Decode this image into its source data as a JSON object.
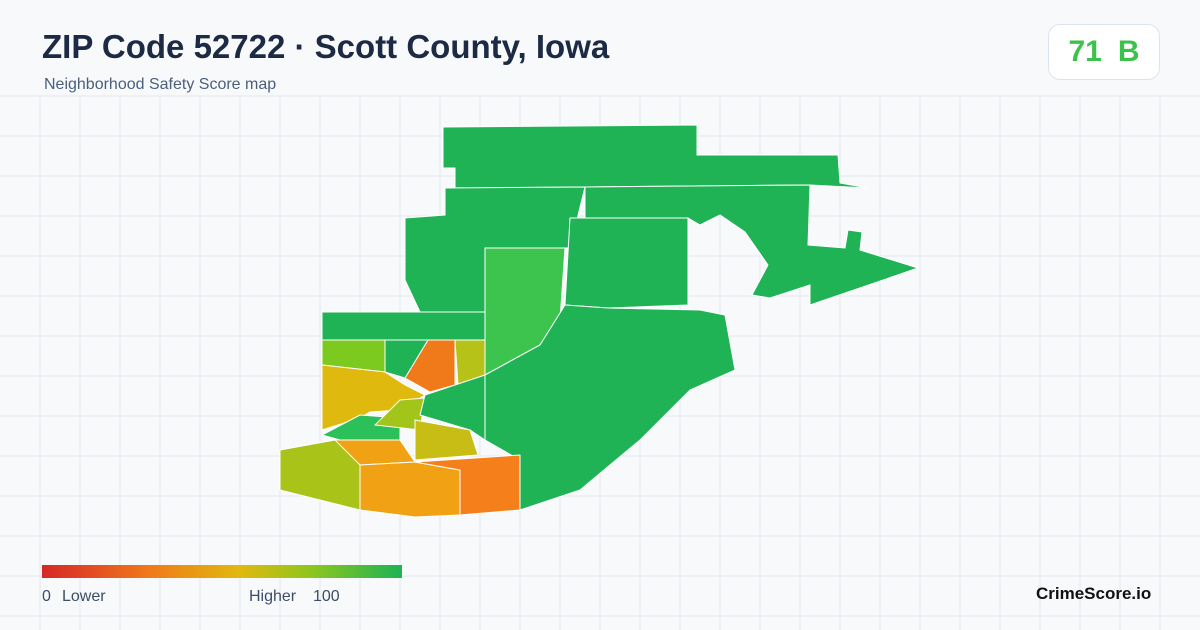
{
  "header": {
    "title": "ZIP Code 52722 · Scott County, Iowa",
    "subtitle": "Neighborhood Safety Score map"
  },
  "score": {
    "value": 71,
    "grade": "B"
  },
  "legend": {
    "min": 0,
    "min_label": "Lower",
    "max_label": "Higher",
    "max": 100
  },
  "footer": {
    "brand": "CrimeScore.io"
  }
}
